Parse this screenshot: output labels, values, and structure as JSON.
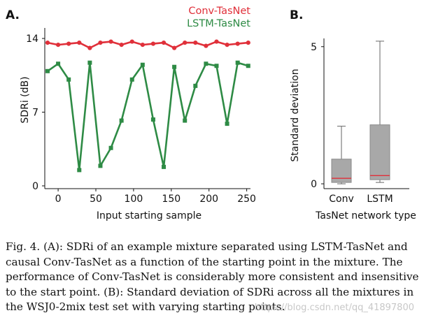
{
  "panel_a": {
    "label": "A."
  },
  "panel_b": {
    "label": "B."
  },
  "chart_data": [
    {
      "type": "line",
      "title": "",
      "xlabel": "Input starting sample",
      "ylabel": "SDRi (dB)",
      "xticks": [
        0,
        50,
        100,
        150,
        200,
        250
      ],
      "yticks": [
        0,
        7,
        14
      ],
      "xlim": [
        -14,
        255
      ],
      "ylim": [
        0,
        15
      ],
      "legend": [
        "Conv-TasNet",
        "LSTM-TasNet"
      ],
      "legend_position": "top-right",
      "x": [
        -14,
        0,
        14,
        28,
        42,
        56,
        70,
        84,
        98,
        112,
        126,
        140,
        154,
        168,
        182,
        196,
        210,
        224,
        238,
        252
      ],
      "series": [
        {
          "name": "Conv-TasNet",
          "color": "#e0303a",
          "values": [
            13.6,
            13.4,
            13.5,
            13.6,
            13.1,
            13.6,
            13.7,
            13.4,
            13.7,
            13.4,
            13.5,
            13.6,
            13.1,
            13.6,
            13.6,
            13.3,
            13.7,
            13.4,
            13.5,
            13.6
          ]
        },
        {
          "name": "LSTM-TasNet",
          "color": "#2e8b45",
          "values": [
            10.9,
            11.6,
            10.1,
            1.5,
            11.7,
            1.9,
            3.6,
            6.2,
            10.1,
            11.5,
            6.3,
            1.8,
            11.3,
            6.2,
            9.5,
            11.6,
            11.4,
            5.9,
            11.7,
            11.4
          ]
        }
      ]
    },
    {
      "type": "box",
      "title": "",
      "xlabel": "TasNet network type",
      "ylabel": "Standard deviation",
      "yticks": [
        0,
        5
      ],
      "ylim": [
        -0.1,
        5.3
      ],
      "categories": [
        "Conv",
        "LSTM"
      ],
      "box_color": "#a8a8a8",
      "median_color": "#e0303a",
      "boxes": [
        {
          "min": 0.0,
          "q1": 0.05,
          "median": 0.2,
          "q3": 0.9,
          "max": 2.1
        },
        {
          "min": 0.05,
          "q1": 0.15,
          "median": 0.3,
          "q3": 2.15,
          "max": 5.2
        }
      ]
    }
  ],
  "caption": {
    "lines": [
      "Fig. 4.  (A): SDRi of an example mixture separated using LSTM-TasNet and",
      "causal Conv-TasNet as a function of the starting point in the mixture. The",
      "performance of Conv-TasNet is considerably more consistent and insensitive",
      "to the start point. (B): Standard deviation of SDRi across all the mixtures in",
      "the WSJ0-2mix test set with varying starting points."
    ]
  },
  "watermark": "https://blog.csdn.net/qq_41897800"
}
